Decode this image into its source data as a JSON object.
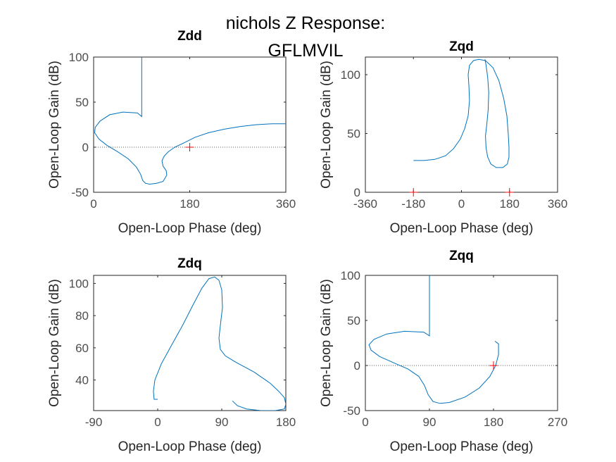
{
  "figure": {
    "title_line1": "nichols Z Response:",
    "title_line2": "GFLMVIL"
  },
  "chart_data": [
    {
      "type": "line",
      "title": "Zdd",
      "xlabel": "Open-Loop Phase (deg)",
      "ylabel": "Open-Loop Gain (dB)",
      "xlim": [
        0,
        360
      ],
      "ylim": [
        -50,
        100
      ],
      "xticks": [
        0,
        180,
        360
      ],
      "yticks": [
        -50,
        0,
        50,
        100
      ],
      "grid": false,
      "reference_line": {
        "y": 0,
        "style": "dotted"
      },
      "critical_points": [
        [
          180,
          0
        ]
      ],
      "series_color": "#0072bd",
      "series": [
        {
          "x": [
            90,
            90,
            90,
            90,
            82,
            55,
            30,
            12,
            3,
            2,
            10,
            25,
            45,
            65,
            80,
            88,
            92,
            97,
            105,
            118,
            130,
            137,
            136,
            130,
            128,
            132,
            140,
            152,
            170,
            190,
            215,
            245,
            275,
            305,
            335,
            360
          ],
          "y": [
            100,
            80,
            55,
            34,
            38,
            39,
            36,
            29,
            22,
            16,
            9,
            2,
            -5,
            -13,
            -22,
            -30,
            -37,
            -40,
            -41,
            -40,
            -38,
            -31,
            -26,
            -21,
            -15,
            -10,
            -5,
            0,
            5,
            11,
            16,
            20,
            23,
            25,
            26,
            26
          ]
        }
      ]
    },
    {
      "type": "line",
      "title": "Zqd",
      "xlabel": "Open-Loop Phase (deg)",
      "ylabel": "Open-Loop Gain (dB)",
      "xlim": [
        -360,
        360
      ],
      "ylim": [
        0,
        115
      ],
      "xticks": [
        -360,
        -180,
        0,
        180,
        360
      ],
      "yticks": [
        0,
        50,
        100
      ],
      "grid": false,
      "reference_line": {
        "y": 0,
        "style": "dotted"
      },
      "critical_points": [
        [
          -180,
          0
        ],
        [
          180,
          0
        ]
      ],
      "series_color": "#0072bd",
      "series": [
        {
          "x": [
            -180,
            -140,
            -100,
            -60,
            -30,
            -5,
            12,
            25,
            30,
            28,
            25,
            30,
            45,
            65,
            90,
            118,
            140,
            158,
            170,
            175,
            178,
            178,
            172,
            155,
            130,
            110,
            98,
            92,
            90,
            95,
            100,
            102,
            98,
            92,
            88
          ],
          "y": [
            27,
            27,
            28,
            31,
            37,
            45,
            54,
            65,
            78,
            90,
            100,
            108,
            112,
            113,
            112,
            106,
            95,
            80,
            65,
            50,
            38,
            30,
            24,
            21,
            21,
            24,
            30,
            38,
            48,
            58,
            70,
            85,
            98,
            108,
            113
          ]
        }
      ]
    },
    {
      "type": "line",
      "title": "Zdq",
      "xlabel": "Open-Loop Phase (deg)",
      "ylabel": "Open-Loop Gain (dB)",
      "xlim": [
        -90,
        180
      ],
      "ylim": [
        21,
        105
      ],
      "xticks": [
        -90,
        0,
        90,
        180
      ],
      "yticks": [
        40,
        60,
        80,
        100
      ],
      "grid": false,
      "reference_line": null,
      "critical_points": [],
      "series_color": "#0072bd",
      "series": [
        {
          "x": [
            0,
            -5,
            -6,
            -4,
            5,
            20,
            35,
            50,
            62,
            72,
            80,
            86,
            90,
            91,
            88,
            86,
            88,
            95,
            110,
            135,
            158,
            170,
            178,
            180,
            178,
            165,
            145,
            125,
            112,
            105
          ],
          "y": [
            28,
            28,
            33,
            40,
            50,
            62,
            74,
            87,
            97,
            103,
            104,
            102,
            96,
            85,
            74,
            66,
            59,
            55,
            51,
            45,
            38,
            33,
            29,
            25,
            22,
            21,
            21,
            22,
            24,
            27
          ]
        }
      ]
    },
    {
      "type": "line",
      "title": "Zqq",
      "xlabel": "Open-Loop Phase (deg)",
      "ylabel": "Open-Loop Gain (dB)",
      "xlim": [
        0,
        270
      ],
      "ylim": [
        -50,
        100
      ],
      "xticks": [
        0,
        90,
        180,
        270
      ],
      "yticks": [
        -50,
        0,
        50,
        100
      ],
      "grid": false,
      "reference_line": {
        "y": 0,
        "style": "dotted"
      },
      "critical_points": [
        [
          180,
          0
        ]
      ],
      "series_color": "#0072bd",
      "series": [
        {
          "x": [
            90,
            90,
            90,
            90,
            82,
            55,
            30,
            12,
            5,
            8,
            20,
            40,
            60,
            75,
            83,
            88,
            95,
            105,
            118,
            140,
            160,
            175,
            183,
            187,
            187,
            182
          ],
          "y": [
            100,
            75,
            55,
            33,
            37,
            38,
            35,
            29,
            23,
            17,
            10,
            3,
            -4,
            -12,
            -22,
            -32,
            -40,
            -42,
            -41,
            -35,
            -25,
            -12,
            0,
            12,
            24,
            27
          ]
        }
      ]
    }
  ]
}
